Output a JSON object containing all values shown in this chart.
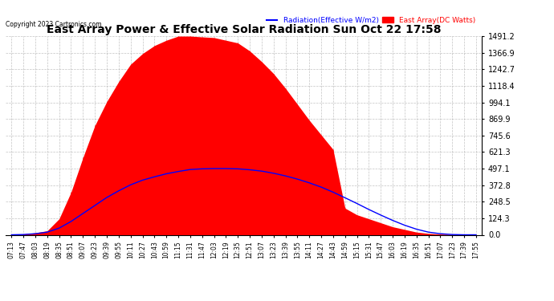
{
  "title": "East Array Power & Effective Solar Radiation Sun Oct 22 17:58",
  "copyright": "Copyright 2023 Cartronics.com",
  "legend_radiation": "Radiation(Effective W/m2)",
  "legend_array": "East Array(DC Watts)",
  "y_max": 1491.2,
  "y_ticks": [
    0.0,
    124.3,
    248.5,
    372.8,
    497.1,
    621.3,
    745.6,
    869.9,
    994.1,
    1118.4,
    1242.7,
    1366.9,
    1491.2
  ],
  "x_labels": [
    "07:13",
    "07:47",
    "08:03",
    "08:19",
    "08:35",
    "08:51",
    "09:07",
    "09:23",
    "09:39",
    "09:55",
    "10:11",
    "10:27",
    "10:43",
    "10:59",
    "11:15",
    "11:31",
    "11:47",
    "12:03",
    "12:19",
    "12:35",
    "12:51",
    "13:07",
    "13:23",
    "13:39",
    "13:55",
    "14:11",
    "14:27",
    "14:43",
    "14:59",
    "15:15",
    "15:31",
    "15:47",
    "16:03",
    "16:19",
    "16:35",
    "16:51",
    "17:07",
    "17:23",
    "17:39",
    "17:55"
  ],
  "background_color": "#ffffff",
  "plot_bg_color": "#ffffff",
  "grid_color": "#aaaaaa",
  "red_color": "#ff0000",
  "blue_color": "#0000ff",
  "title_color": "#000000",
  "copyright_color": "#000000",
  "red_template": [
    0,
    5,
    15,
    30,
    120,
    320,
    580,
    820,
    1000,
    1150,
    1280,
    1360,
    1420,
    1460,
    1491,
    1491,
    1485,
    1480,
    1460,
    1440,
    1380,
    1300,
    1210,
    1100,
    980,
    860,
    750,
    640,
    200,
    150,
    120,
    90,
    60,
    40,
    20,
    10,
    5,
    2,
    0,
    0
  ],
  "blue_template": [
    0,
    2,
    8,
    20,
    50,
    100,
    160,
    220,
    280,
    330,
    375,
    410,
    435,
    458,
    475,
    490,
    495,
    497,
    497,
    495,
    488,
    478,
    462,
    442,
    418,
    390,
    358,
    320,
    278,
    235,
    190,
    148,
    108,
    72,
    42,
    20,
    8,
    2,
    0,
    0
  ]
}
